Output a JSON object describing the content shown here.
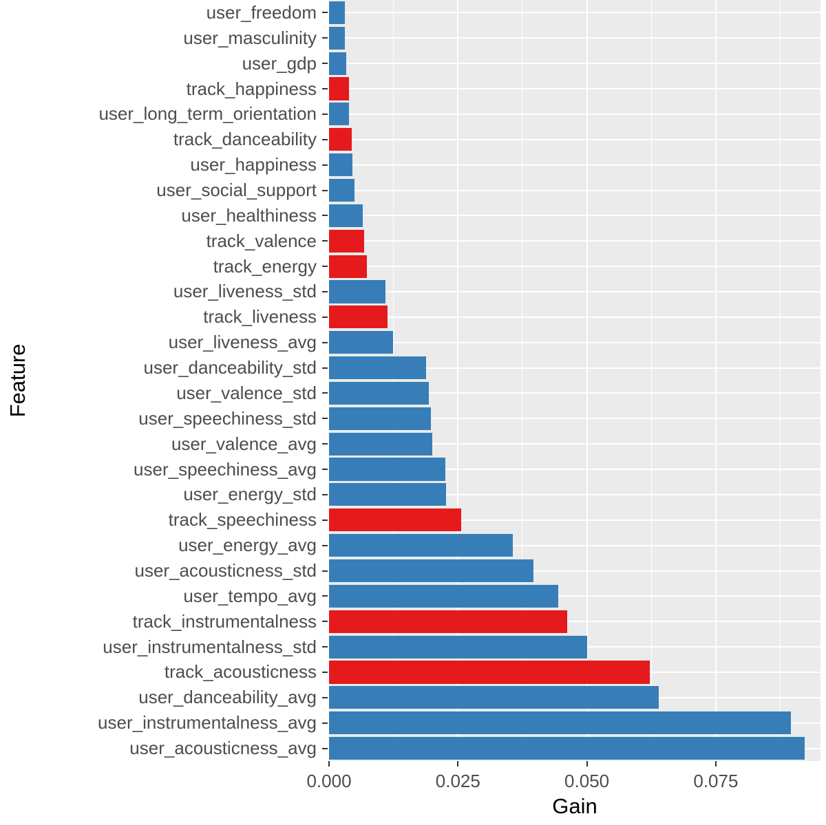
{
  "chart_data": {
    "type": "bar",
    "orientation": "horizontal",
    "title": "",
    "xlabel": "Gain",
    "ylabel": "Feature",
    "xlim": [
      0,
      0.0953
    ],
    "x_ticks": [
      0.0,
      0.025,
      0.05,
      0.075
    ],
    "x_tick_labels": [
      "0.000",
      "0.025",
      "0.050",
      "0.075"
    ],
    "x_minor_ticks": [
      0.0125,
      0.0375,
      0.0625,
      0.0875
    ],
    "grid": "on",
    "legend": "none",
    "panel_bg": "#EBEBEB",
    "grid_color": "#FFFFFF",
    "colors": {
      "user": "#377EB8",
      "track": "#E41A1C"
    },
    "categories": [
      "user_freedom",
      "user_masculinity",
      "user_gdp",
      "track_happiness",
      "user_long_term_orientation",
      "track_danceability",
      "user_happiness",
      "user_social_support",
      "user_healthiness",
      "track_valence",
      "track_energy",
      "user_liveness_std",
      "track_liveness",
      "user_liveness_avg",
      "user_danceability_std",
      "user_valence_std",
      "user_speechiness_std",
      "user_valence_avg",
      "user_speechiness_avg",
      "user_energy_std",
      "track_speechiness",
      "user_energy_avg",
      "user_acousticness_std",
      "user_tempo_avg",
      "track_instrumentalness",
      "user_instrumentalness_std",
      "track_acousticness",
      "user_danceability_avg",
      "user_instrumentalness_avg",
      "user_acousticness_avg"
    ],
    "values": [
      0.0031,
      0.0031,
      0.0033,
      0.0039,
      0.0039,
      0.0044,
      0.0045,
      0.0049,
      0.0066,
      0.0068,
      0.0074,
      0.0109,
      0.0114,
      0.0124,
      0.0188,
      0.0193,
      0.0197,
      0.02,
      0.0226,
      0.0227,
      0.0256,
      0.0357,
      0.0397,
      0.0444,
      0.0462,
      0.0501,
      0.0622,
      0.064,
      0.0895,
      0.0922
    ],
    "groups": [
      "user",
      "user",
      "user",
      "track",
      "user",
      "track",
      "user",
      "user",
      "user",
      "track",
      "track",
      "user",
      "track",
      "user",
      "user",
      "user",
      "user",
      "user",
      "user",
      "user",
      "track",
      "user",
      "user",
      "user",
      "track",
      "user",
      "track",
      "user",
      "user",
      "user"
    ]
  }
}
